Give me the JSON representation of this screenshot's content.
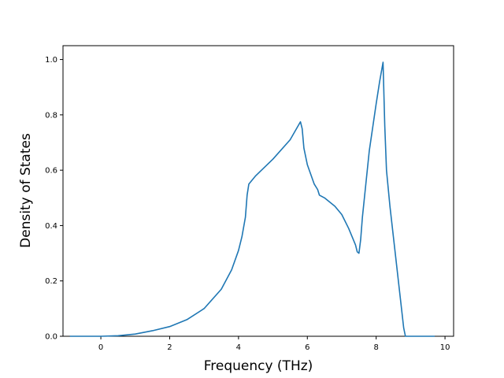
{
  "chart_data": {
    "type": "line",
    "title": "",
    "xlabel": "Frequency (THz)",
    "ylabel": "Density of States",
    "xlim": [
      -1.1,
      10.25
    ],
    "ylim": [
      0.0,
      1.05
    ],
    "x_ticks": [
      0,
      2,
      4,
      6,
      8,
      10
    ],
    "y_ticks": [
      0.0,
      0.2,
      0.4,
      0.6,
      0.8,
      1.0
    ],
    "x_tick_labels": [
      "0",
      "2",
      "4",
      "6",
      "8",
      "10"
    ],
    "y_tick_labels": [
      "0.0",
      "0.2",
      "0.4",
      "0.6",
      "0.8",
      "1.0"
    ],
    "grid": false,
    "color": "#1f77b4",
    "series": [
      {
        "x": [
          -0.9,
          -0.5,
          0.0,
          0.5,
          1.0,
          1.5,
          2.0,
          2.5,
          3.0,
          3.5,
          3.8,
          4.0,
          4.1,
          4.2,
          4.25,
          4.3,
          4.5,
          5.0,
          5.5,
          5.8,
          5.85,
          5.9,
          6.0,
          6.2,
          6.3,
          6.35,
          6.5,
          6.8,
          7.0,
          7.2,
          7.4,
          7.45,
          7.5,
          7.55,
          7.6,
          7.7,
          7.8,
          8.0,
          8.1,
          8.2,
          8.25,
          8.3,
          8.4,
          8.5,
          8.6,
          8.7,
          8.8,
          8.85,
          8.9,
          9.2,
          9.5,
          9.7
        ],
        "y": [
          0.0,
          0.0,
          0.0,
          0.002,
          0.008,
          0.02,
          0.035,
          0.06,
          0.1,
          0.17,
          0.24,
          0.31,
          0.36,
          0.43,
          0.51,
          0.55,
          0.58,
          0.64,
          0.71,
          0.775,
          0.75,
          0.68,
          0.62,
          0.55,
          0.53,
          0.51,
          0.5,
          0.47,
          0.44,
          0.39,
          0.33,
          0.305,
          0.3,
          0.35,
          0.43,
          0.55,
          0.67,
          0.84,
          0.92,
          0.99,
          0.76,
          0.6,
          0.47,
          0.36,
          0.25,
          0.14,
          0.03,
          0.0,
          0.0,
          0.0,
          0.0,
          0.0
        ]
      }
    ]
  }
}
